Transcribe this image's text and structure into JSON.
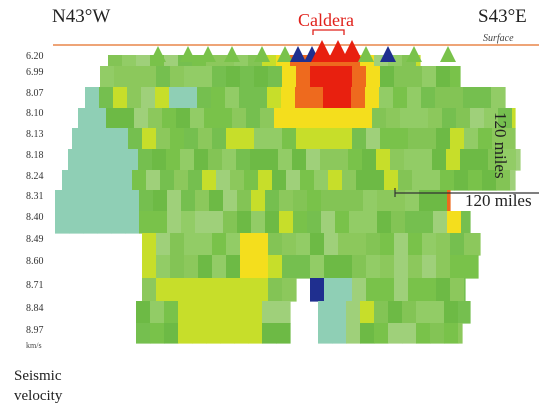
{
  "directions": {
    "left": "N43°W",
    "right": "S43°E"
  },
  "feature_label": "Caldera",
  "surface_label": "Surface",
  "scale": {
    "horizontal": "120 miles",
    "vertical": "120 miles"
  },
  "velocity_unit": "km/s",
  "legend": {
    "line1": "Seismic",
    "line2": "velocity"
  },
  "velocities": [
    "6.20",
    "6.99",
    "8.07",
    "8.10",
    "8.13",
    "8.18",
    "8.24",
    "8.31",
    "8.40",
    "8.49",
    "8.60",
    "8.71",
    "8.84",
    "8.97"
  ],
  "colors": {
    "surface_line": "#e8854a",
    "hot_red": "#e8200f",
    "hot_orange": "#ee6a1e",
    "yellow": "#f4de1d",
    "yellow_green": "#c7de2a",
    "green": "#79c24a",
    "mid_green": "#8cc85c",
    "cool_teal": "#8fcfb5",
    "deep_blue": "#1f2f8f",
    "caldera_label": "#e0201a"
  },
  "volcano_markers": [
    {
      "color": "green"
    },
    {
      "color": "green"
    },
    {
      "color": "green"
    },
    {
      "color": "green"
    },
    {
      "color": "green"
    },
    {
      "color": "green"
    },
    {
      "color": "deep_blue"
    },
    {
      "color": "deep_blue"
    },
    {
      "color": "hot_red"
    },
    {
      "color": "hot_red"
    },
    {
      "color": "hot_red"
    },
    {
      "color": "green"
    },
    {
      "color": "deep_blue"
    },
    {
      "color": "green"
    },
    {
      "color": "green"
    }
  ]
}
